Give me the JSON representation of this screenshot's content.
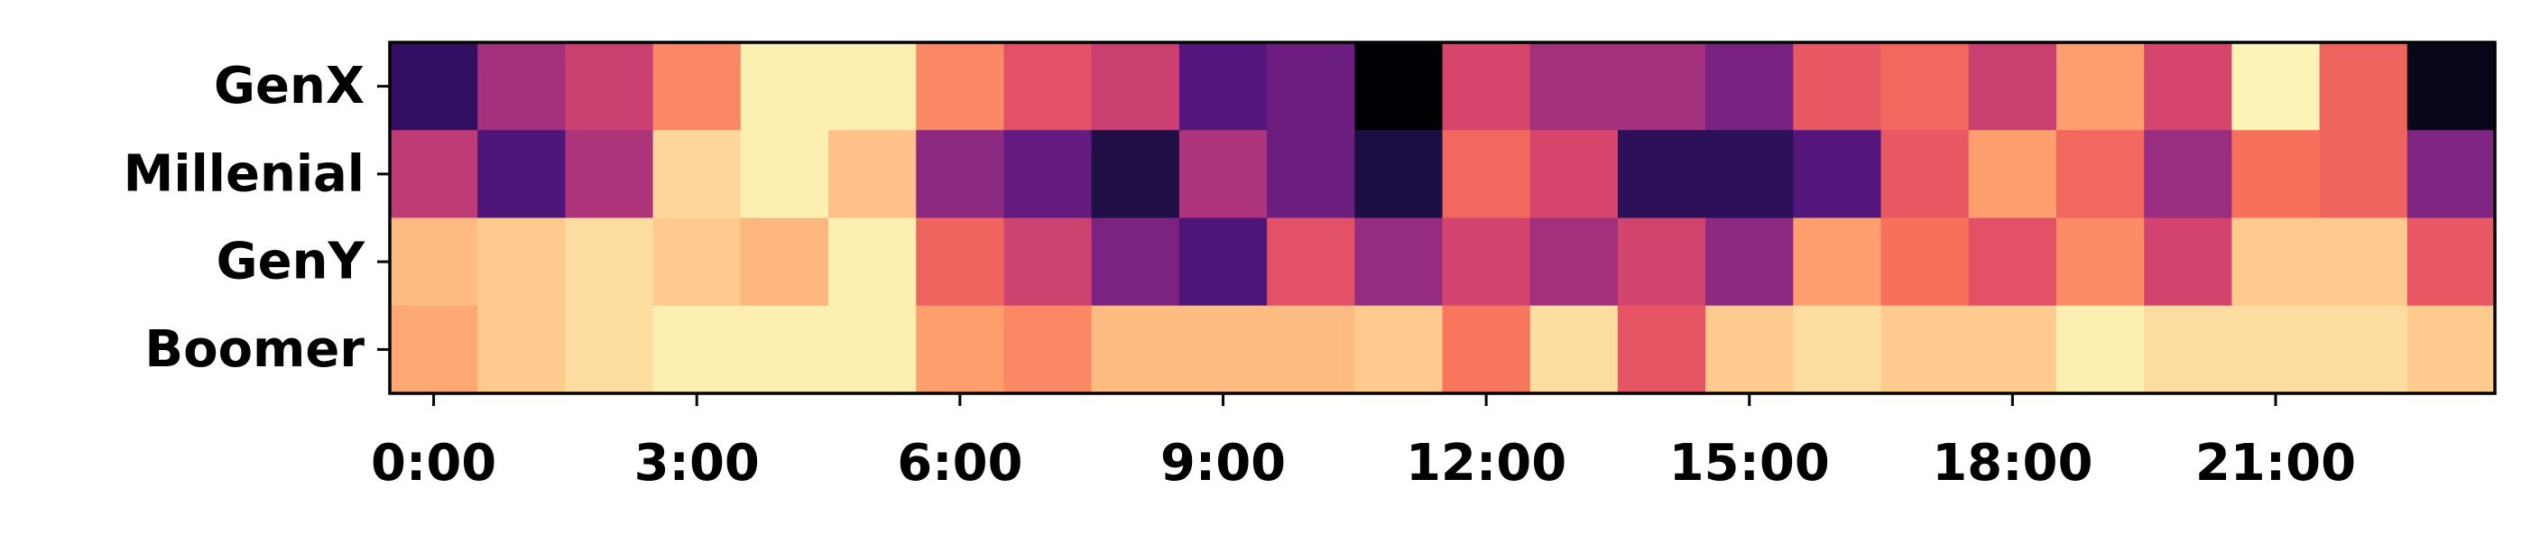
{
  "chart_data": {
    "type": "heatmap",
    "colormap": "magma",
    "rows": [
      "GenX",
      "Millenial",
      "GenY",
      "Boomer"
    ],
    "columns": [
      "0:00",
      "1:00",
      "2:00",
      "3:00",
      "4:00",
      "5:00",
      "6:00",
      "7:00",
      "8:00",
      "9:00",
      "10:00",
      "11:00",
      "12:00",
      "13:00",
      "14:00",
      "15:00",
      "16:00",
      "17:00",
      "18:00",
      "19:00",
      "20:00",
      "21:00",
      "22:00",
      "23:00"
    ],
    "x_tick_labels": [
      "0:00",
      "3:00",
      "6:00",
      "9:00",
      "12:00",
      "15:00",
      "18:00",
      "21:00"
    ],
    "value_range": [
      0,
      1
    ],
    "values": [
      [
        0.18,
        0.45,
        0.55,
        0.75,
        0.97,
        0.97,
        0.75,
        0.62,
        0.55,
        0.26,
        0.32,
        0.0,
        0.58,
        0.45,
        0.45,
        0.35,
        0.64,
        0.68,
        0.55,
        0.8,
        0.58,
        0.98,
        0.67,
        0.04
      ],
      [
        0.52,
        0.25,
        0.48,
        0.92,
        0.97,
        0.87,
        0.4,
        0.3,
        0.13,
        0.48,
        0.32,
        0.12,
        0.68,
        0.58,
        0.16,
        0.16,
        0.26,
        0.64,
        0.8,
        0.68,
        0.43,
        0.7,
        0.67,
        0.37
      ],
      [
        0.86,
        0.89,
        0.93,
        0.89,
        0.85,
        0.97,
        0.67,
        0.56,
        0.36,
        0.25,
        0.62,
        0.42,
        0.57,
        0.45,
        0.57,
        0.4,
        0.8,
        0.7,
        0.62,
        0.76,
        0.57,
        0.89,
        0.89,
        0.64
      ],
      [
        0.82,
        0.89,
        0.93,
        0.97,
        0.97,
        0.97,
        0.8,
        0.75,
        0.86,
        0.86,
        0.86,
        0.89,
        0.71,
        0.93,
        0.63,
        0.89,
        0.93,
        0.89,
        0.89,
        0.97,
        0.93,
        0.93,
        0.93,
        0.89
      ]
    ],
    "title": "",
    "xlabel": "",
    "ylabel": ""
  }
}
